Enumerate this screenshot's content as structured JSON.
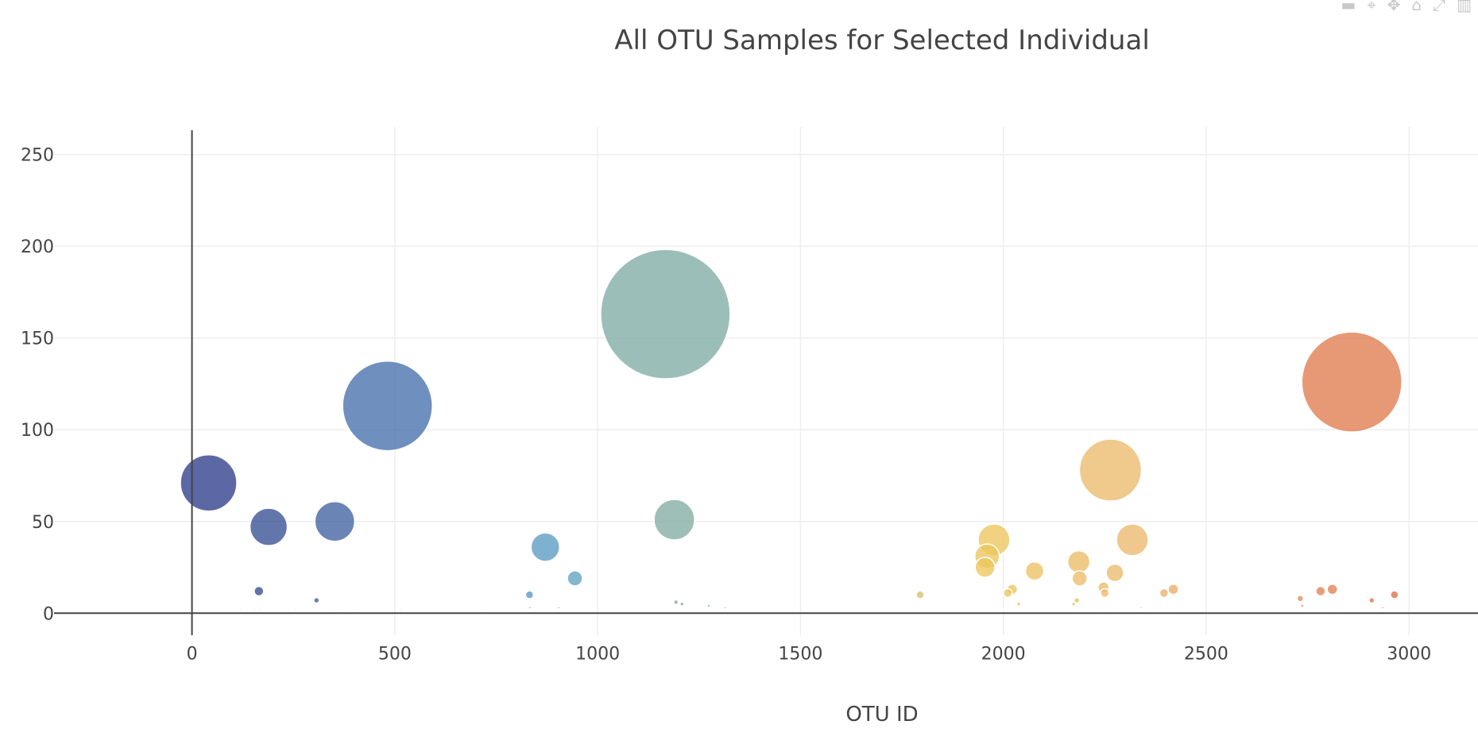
{
  "toolbar": {
    "icons": [
      "camera-icon",
      "zoom-icon",
      "pan-icon",
      "reset-icon",
      "autoscale-icon",
      "bar-icon"
    ]
  },
  "chart_data": {
    "type": "scatter",
    "variant": "bubble",
    "title": "All OTU Samples for Selected Individual",
    "xlabel": "OTU ID",
    "ylabel": "",
    "xlim": [
      -340,
      3170
    ],
    "ylim": [
      -12,
      265
    ],
    "xticks": [
      0,
      500,
      1000,
      1500,
      2000,
      2500,
      3000
    ],
    "yticks": [
      0,
      50,
      100,
      150,
      200,
      250
    ],
    "grid": true,
    "legend": "none",
    "colorscale": "Earth",
    "size_unit": "marker diameter equals sample value in pixels",
    "series": [
      {
        "points": [
          {
            "x": 41,
            "y": 71
          },
          {
            "x": 189,
            "y": 47
          },
          {
            "x": 352,
            "y": 50
          },
          {
            "x": 482,
            "y": 113
          },
          {
            "x": 165,
            "y": 12
          },
          {
            "x": 307,
            "y": 7
          },
          {
            "x": 871,
            "y": 36
          },
          {
            "x": 944,
            "y": 19
          },
          {
            "x": 832,
            "y": 10
          },
          {
            "x": 1167,
            "y": 163
          },
          {
            "x": 1189,
            "y": 51
          },
          {
            "x": 1193,
            "y": 6
          },
          {
            "x": 1208,
            "y": 5
          },
          {
            "x": 1274,
            "y": 4
          },
          {
            "x": 1314,
            "y": 3
          },
          {
            "x": 1795,
            "y": 10
          },
          {
            "x": 1977,
            "y": 40
          },
          {
            "x": 1960,
            "y": 31
          },
          {
            "x": 1955,
            "y": 25
          },
          {
            "x": 2011,
            "y": 11
          },
          {
            "x": 2022,
            "y": 13
          },
          {
            "x": 2077,
            "y": 23
          },
          {
            "x": 2038,
            "y": 5
          },
          {
            "x": 2186,
            "y": 28
          },
          {
            "x": 2188,
            "y": 19
          },
          {
            "x": 2181,
            "y": 7
          },
          {
            "x": 2173,
            "y": 5
          },
          {
            "x": 2264,
            "y": 78
          },
          {
            "x": 2318,
            "y": 40
          },
          {
            "x": 2275,
            "y": 22
          },
          {
            "x": 2247,
            "y": 14
          },
          {
            "x": 2250,
            "y": 11
          },
          {
            "x": 2396,
            "y": 11
          },
          {
            "x": 2419,
            "y": 13
          },
          {
            "x": 2732,
            "y": 8
          },
          {
            "x": 2737,
            "y": 4
          },
          {
            "x": 2782,
            "y": 12
          },
          {
            "x": 2811,
            "y": 13
          },
          {
            "x": 2859,
            "y": 126
          },
          {
            "x": 2908,
            "y": 7
          },
          {
            "x": 2935,
            "y": 3
          },
          {
            "x": 2964,
            "y": 10
          },
          {
            "x": 120,
            "y": 2
          },
          {
            "x": 155,
            "y": 2
          },
          {
            "x": 170,
            "y": 2
          },
          {
            "x": 255,
            "y": 2
          },
          {
            "x": 340,
            "y": 2
          },
          {
            "x": 361,
            "y": 2
          },
          {
            "x": 410,
            "y": 2
          },
          {
            "x": 515,
            "y": 2
          },
          {
            "x": 725,
            "y": 2
          },
          {
            "x": 833,
            "y": 3
          },
          {
            "x": 904,
            "y": 3
          },
          {
            "x": 1233,
            "y": 2
          },
          {
            "x": 1505,
            "y": 2
          },
          {
            "x": 2000,
            "y": 2
          },
          {
            "x": 2040,
            "y": 2
          },
          {
            "x": 2110,
            "y": 2
          },
          {
            "x": 2148,
            "y": 2
          },
          {
            "x": 2340,
            "y": 3
          },
          {
            "x": 2475,
            "y": 2
          },
          {
            "x": 2493,
            "y": 2
          },
          {
            "x": 2540,
            "y": 2
          },
          {
            "x": 2573,
            "y": 2
          }
        ]
      }
    ]
  }
}
